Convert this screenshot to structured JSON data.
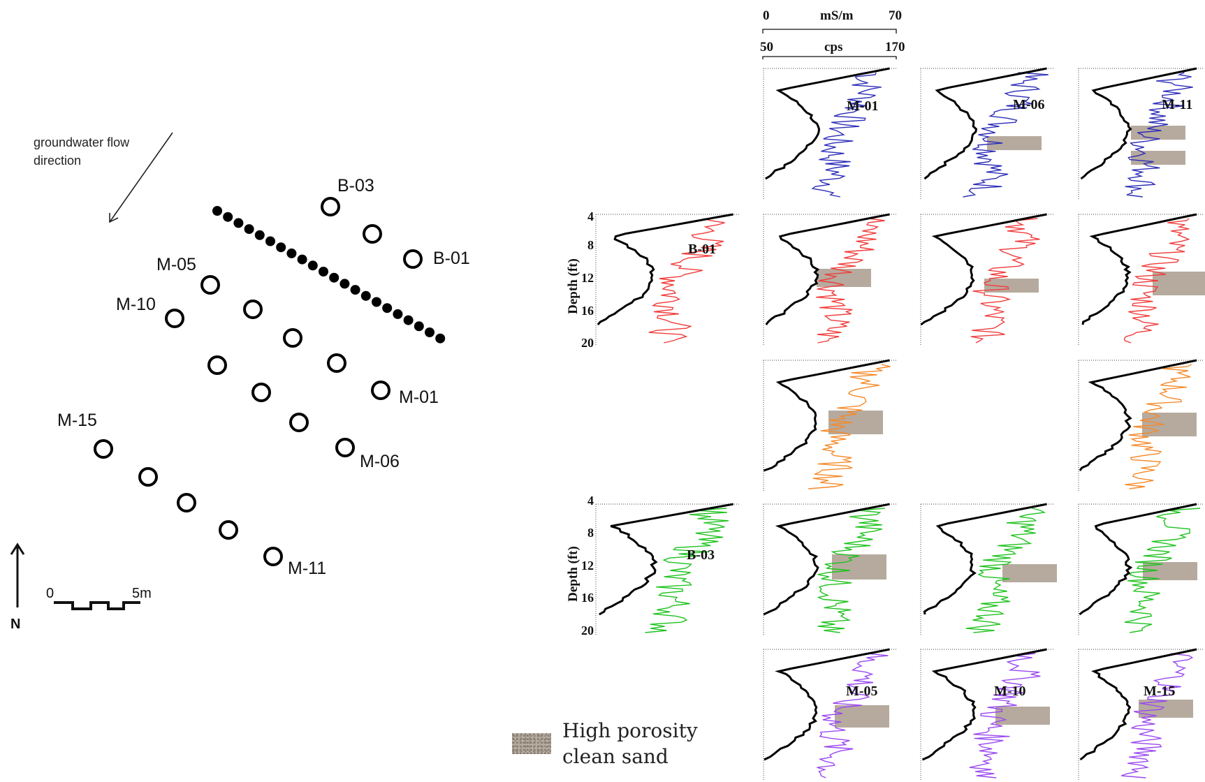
{
  "map": {
    "flow_label_line1": "groundwater flow",
    "flow_label_line2": "direction",
    "north_label": "N",
    "scale_start": "0",
    "scale_end": "5m",
    "well_labels": {
      "b03": "B-03",
      "b01": "B-01",
      "m05": "M-05",
      "m10": "M-10",
      "m01": "M-01",
      "m15": "M-15",
      "m06": "M-06",
      "m11": "M-11"
    }
  },
  "logs": {
    "conductivity_axis": {
      "min": "0",
      "unit": "mS/m",
      "max": "70"
    },
    "gamma_axis": {
      "min": "50",
      "unit": "cps",
      "max": "170"
    },
    "depth_label": "Depth (ft)",
    "depth_ticks": [
      "4",
      "8",
      "12",
      "16",
      "20"
    ],
    "panel_labels": {
      "m01": "M-01",
      "m06": "M-06",
      "m11": "M-11",
      "b01": "B-01",
      "b03": "B-03",
      "m05": "M-05",
      "m10": "M-10",
      "m15": "M-15"
    },
    "row_colors": [
      "#2d2db8",
      "#f03c3c",
      "#f58a2a",
      "#1fc21f",
      "#9a4af0"
    ],
    "sand_color": "#b6aa9e"
  },
  "legend": {
    "line1": "High porosity",
    "line2": "clean sand"
  }
}
